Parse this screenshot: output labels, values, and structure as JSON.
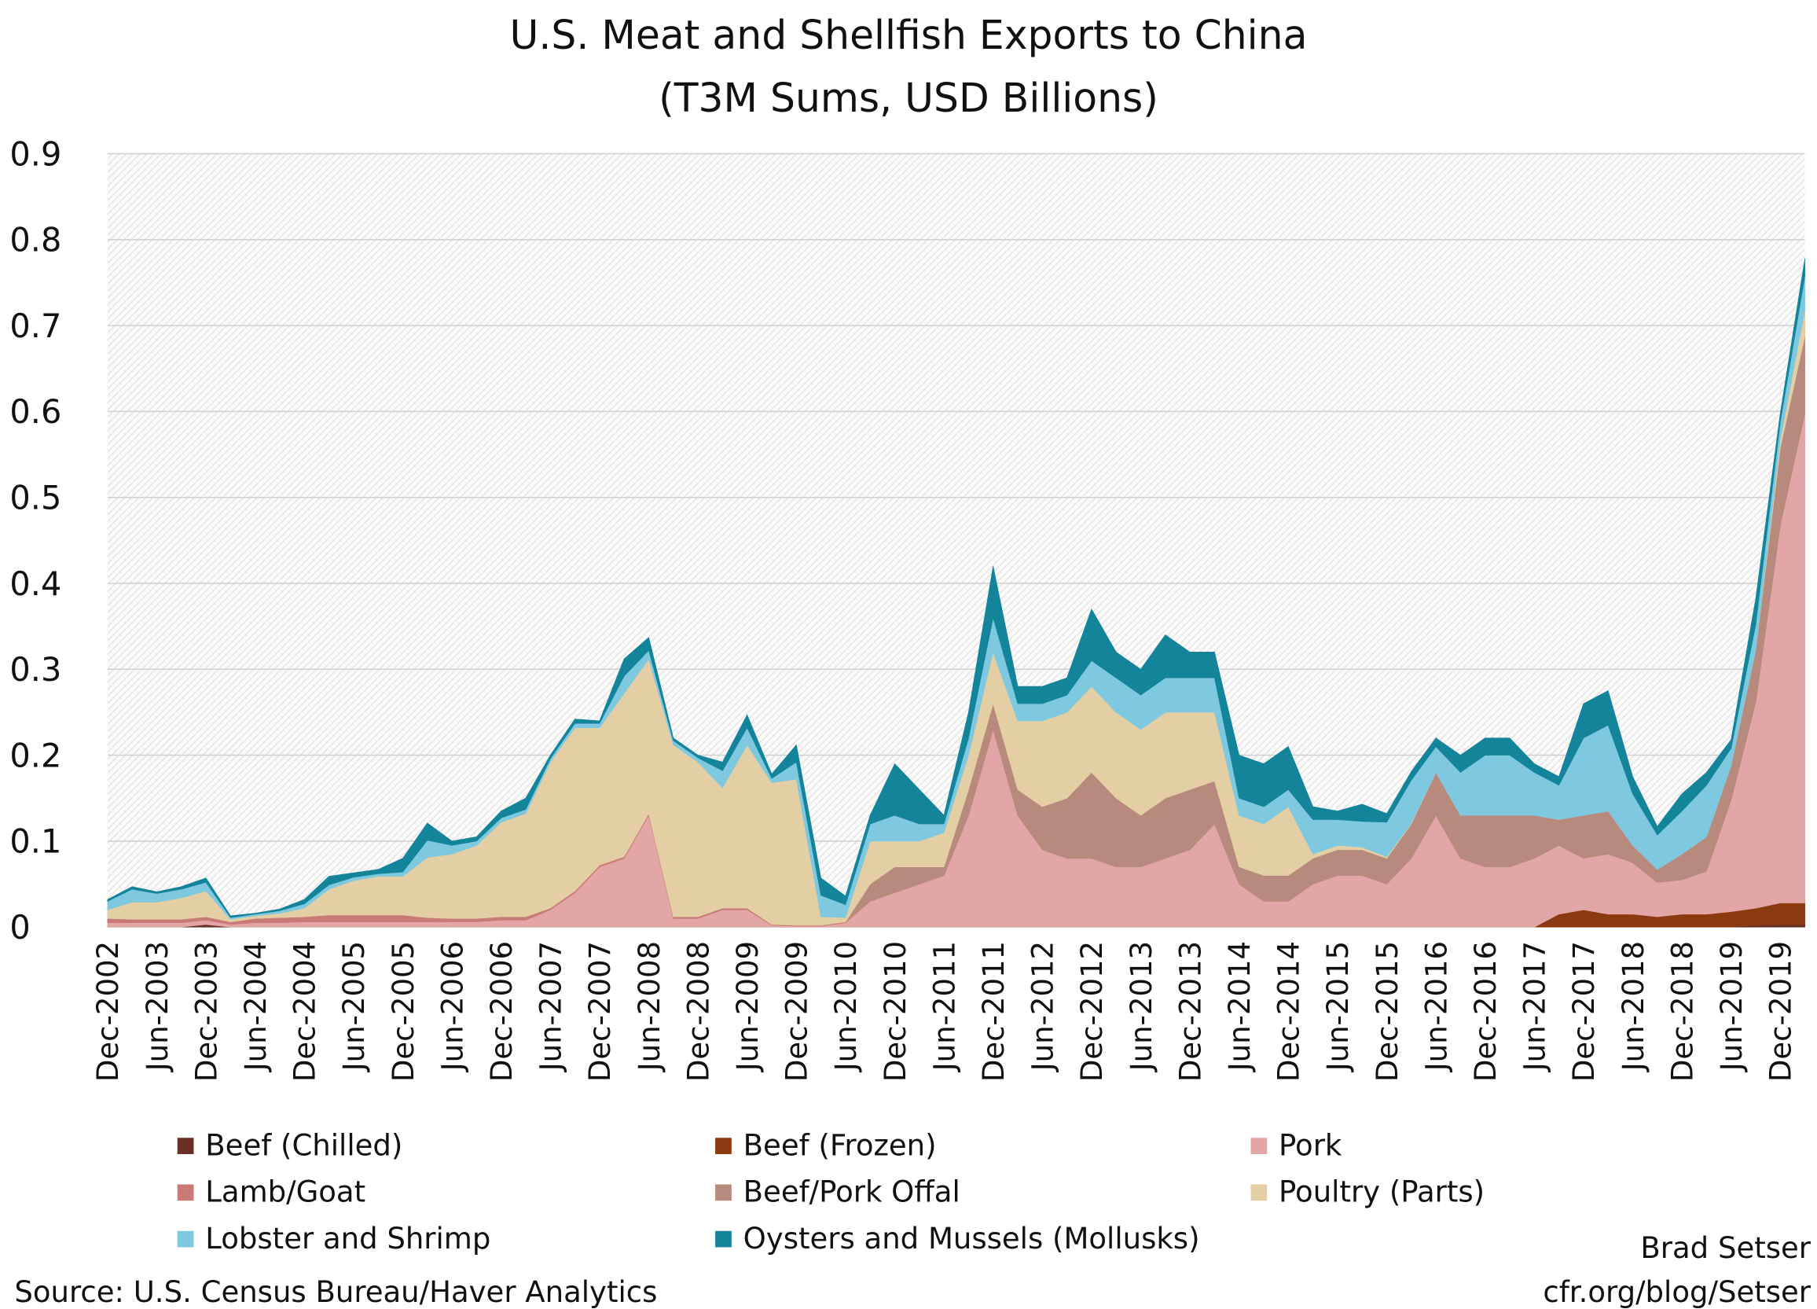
{
  "chart_data": {
    "type": "stacked-area",
    "title": "U.S. Meat and Shellfish Exports to China",
    "subtitle": "(T3M Sums, USD Billions)",
    "source": "Source: U.S. Census Bureau/Haver Analytics",
    "author": "Brad Setser",
    "url": "cfr.org/blog/Setser",
    "ylim": [
      0,
      0.9
    ],
    "yticks": [
      0,
      0.1,
      0.2,
      0.3,
      0.4,
      0.5,
      0.6,
      0.7,
      0.8,
      0.9
    ],
    "grid": true,
    "categories": [
      "Dec-2002",
      null,
      "Jun-2003",
      null,
      "Dec-2003",
      null,
      "Jun-2004",
      null,
      "Dec-2004",
      null,
      "Jun-2005",
      null,
      "Dec-2005",
      null,
      "Jun-2006",
      null,
      "Dec-2006",
      null,
      "Jun-2007",
      null,
      "Dec-2007",
      null,
      "Jun-2008",
      null,
      "Dec-2008",
      null,
      "Jun-2009",
      null,
      "Dec-2009",
      null,
      "Jun-2010",
      null,
      "Dec-2010",
      null,
      "Jun-2011",
      null,
      "Dec-2011",
      null,
      "Jun-2012",
      null,
      "Dec-2012",
      null,
      "Jun-2013",
      null,
      "Dec-2013",
      null,
      "Jun-2014",
      null,
      "Dec-2014",
      null,
      "Jun-2015",
      null,
      "Dec-2015",
      null,
      "Jun-2016",
      null,
      "Dec-2016",
      null,
      "Jun-2017",
      null,
      "Dec-2017",
      null,
      "Jun-2018",
      null,
      "Dec-2018",
      null,
      "Jun-2019",
      null,
      "Dec-2019",
      null
    ],
    "series": [
      {
        "name": "Beef (Chilled)",
        "color": "#6b2e23",
        "values": [
          0,
          0,
          0,
          0,
          0.003,
          0,
          0,
          0,
          0,
          0,
          0,
          0,
          0,
          0,
          0,
          0,
          0,
          0,
          0,
          0,
          0,
          0,
          0,
          0,
          0,
          0,
          0,
          0,
          0,
          0,
          0,
          0,
          0,
          0,
          0,
          0,
          0,
          0,
          0,
          0,
          0,
          0,
          0,
          0,
          0,
          0,
          0,
          0,
          0,
          0,
          0,
          0,
          0,
          0,
          0,
          0,
          0,
          0,
          0,
          0,
          0,
          0,
          0,
          0,
          0,
          0,
          0,
          0.002,
          0.003,
          0.003
        ]
      },
      {
        "name": "Beef (Frozen)",
        "color": "#8b3a10",
        "values": [
          0,
          0,
          0,
          0,
          0,
          0,
          0,
          0,
          0,
          0,
          0,
          0,
          0,
          0,
          0,
          0,
          0,
          0,
          0,
          0,
          0,
          0,
          0,
          0,
          0,
          0,
          0,
          0,
          0,
          0,
          0,
          0,
          0,
          0,
          0,
          0,
          0,
          0,
          0,
          0,
          0,
          0,
          0,
          0,
          0,
          0,
          0,
          0,
          0,
          0,
          0,
          0,
          0,
          0,
          0,
          0,
          0,
          0,
          0,
          0.015,
          0.02,
          0.015,
          0.015,
          0.012,
          0.015,
          0.015,
          0.018,
          0.02,
          0.025,
          0.025
        ]
      },
      {
        "name": "Pork",
        "color": "#e3a6a6",
        "values": [
          0.005,
          0.005,
          0.005,
          0.005,
          0.005,
          0.003,
          0.005,
          0.005,
          0.006,
          0.006,
          0.006,
          0.006,
          0.006,
          0.006,
          0.006,
          0.006,
          0.008,
          0.008,
          0.02,
          0.04,
          0.07,
          0.08,
          0.13,
          0.01,
          0.01,
          0.02,
          0.02,
          0.002,
          0.001,
          0.001,
          0.005,
          0.03,
          0.04,
          0.05,
          0.06,
          0.13,
          0.23,
          0.13,
          0.09,
          0.08,
          0.08,
          0.07,
          0.07,
          0.08,
          0.09,
          0.12,
          0.05,
          0.03,
          0.03,
          0.05,
          0.06,
          0.06,
          0.05,
          0.08,
          0.13,
          0.08,
          0.07,
          0.07,
          0.08,
          0.08,
          0.06,
          0.07,
          0.06,
          0.04,
          0.04,
          0.05,
          0.13,
          0.24,
          0.44,
          0.57
        ]
      },
      {
        "name": "Lamb/Goat",
        "color": "#c97a76",
        "values": [
          0.005,
          0.004,
          0.004,
          0.004,
          0.004,
          0.003,
          0.005,
          0.006,
          0.006,
          0.008,
          0.008,
          0.008,
          0.008,
          0.005,
          0.004,
          0.004,
          0.004,
          0.004,
          0.002,
          0.002,
          0.002,
          0.002,
          0.002,
          0.002,
          0.002,
          0.002,
          0.002,
          0.001,
          0.001,
          0.001,
          0.001,
          0,
          0,
          0,
          0,
          0,
          0,
          0,
          0,
          0,
          0,
          0,
          0,
          0,
          0,
          0,
          0,
          0,
          0,
          0,
          0,
          0,
          0,
          0,
          0,
          0,
          0,
          0,
          0,
          0,
          0,
          0,
          0,
          0,
          0,
          0,
          0,
          0,
          0,
          0
        ]
      },
      {
        "name": "Beef/Pork Offal",
        "color": "#b88a7e",
        "values": [
          0,
          0,
          0,
          0,
          0,
          0,
          0,
          0,
          0,
          0,
          0,
          0,
          0,
          0,
          0,
          0,
          0,
          0,
          0,
          0,
          0,
          0,
          0,
          0,
          0,
          0,
          0,
          0,
          0,
          0,
          0,
          0.02,
          0.03,
          0.02,
          0.01,
          0.03,
          0.03,
          0.03,
          0.05,
          0.07,
          0.1,
          0.08,
          0.06,
          0.07,
          0.07,
          0.05,
          0.02,
          0.03,
          0.03,
          0.03,
          0.03,
          0.03,
          0.03,
          0.04,
          0.05,
          0.05,
          0.06,
          0.06,
          0.05,
          0.03,
          0.05,
          0.05,
          0.02,
          0.015,
          0.03,
          0.04,
          0.04,
          0.06,
          0.09,
          0.09
        ]
      },
      {
        "name": "Poultry (Parts)",
        "color": "#e3cfa3",
        "values": [
          0.01,
          0.02,
          0.02,
          0.025,
          0.03,
          0.003,
          0.003,
          0.005,
          0.01,
          0.03,
          0.04,
          0.045,
          0.045,
          0.07,
          0.075,
          0.085,
          0.11,
          0.12,
          0.17,
          0.19,
          0.16,
          0.19,
          0.18,
          0.2,
          0.18,
          0.14,
          0.19,
          0.165,
          0.17,
          0.01,
          0.005,
          0.05,
          0.03,
          0.03,
          0.04,
          0.04,
          0.06,
          0.08,
          0.1,
          0.1,
          0.1,
          0.1,
          0.1,
          0.1,
          0.09,
          0.08,
          0.06,
          0.06,
          0.08,
          0.005,
          0.005,
          0.003,
          0.002,
          0.001,
          0,
          0,
          0,
          0,
          0,
          0,
          0,
          0,
          0,
          0,
          0,
          0,
          0,
          0,
          0.01,
          0.03
        ]
      },
      {
        "name": "Lobster and Shrimp",
        "color": "#7ec8e0",
        "values": [
          0.01,
          0.015,
          0.01,
          0.01,
          0.01,
          0.002,
          0.002,
          0.003,
          0.005,
          0.005,
          0.004,
          0.003,
          0.005,
          0.02,
          0.01,
          0.005,
          0.005,
          0.005,
          0.004,
          0.005,
          0.005,
          0.02,
          0.01,
          0.005,
          0.005,
          0.02,
          0.02,
          0.005,
          0.02,
          0.025,
          0.015,
          0.02,
          0.03,
          0.02,
          0.01,
          0.02,
          0.04,
          0.02,
          0.02,
          0.02,
          0.03,
          0.04,
          0.04,
          0.04,
          0.04,
          0.04,
          0.02,
          0.02,
          0.02,
          0.04,
          0.03,
          0.03,
          0.04,
          0.05,
          0.03,
          0.05,
          0.07,
          0.07,
          0.05,
          0.04,
          0.09,
          0.1,
          0.06,
          0.04,
          0.05,
          0.06,
          0.02,
          0.03,
          0.02,
          0.04
        ]
      },
      {
        "name": "Oysters and Mussels (Mollusks)",
        "color": "#14849a",
        "values": [
          0.002,
          0.003,
          0.002,
          0.003,
          0.005,
          0.002,
          0.001,
          0.002,
          0.005,
          0.01,
          0.005,
          0.005,
          0.016,
          0.02,
          0.005,
          0.005,
          0.008,
          0.013,
          0.004,
          0.005,
          0.003,
          0.02,
          0.015,
          0.003,
          0.003,
          0.01,
          0.015,
          0.005,
          0.02,
          0.02,
          0.01,
          0.01,
          0.06,
          0.04,
          0.01,
          0.03,
          0.06,
          0.02,
          0.02,
          0.02,
          0.06,
          0.03,
          0.03,
          0.05,
          0.03,
          0.03,
          0.05,
          0.05,
          0.05,
          0.015,
          0.01,
          0.02,
          0.01,
          0.01,
          0.01,
          0.02,
          0.02,
          0.02,
          0.01,
          0.01,
          0.04,
          0.04,
          0.02,
          0.01,
          0.02,
          0.015,
          0.01,
          0.03,
          0.01,
          0.02
        ]
      }
    ]
  }
}
